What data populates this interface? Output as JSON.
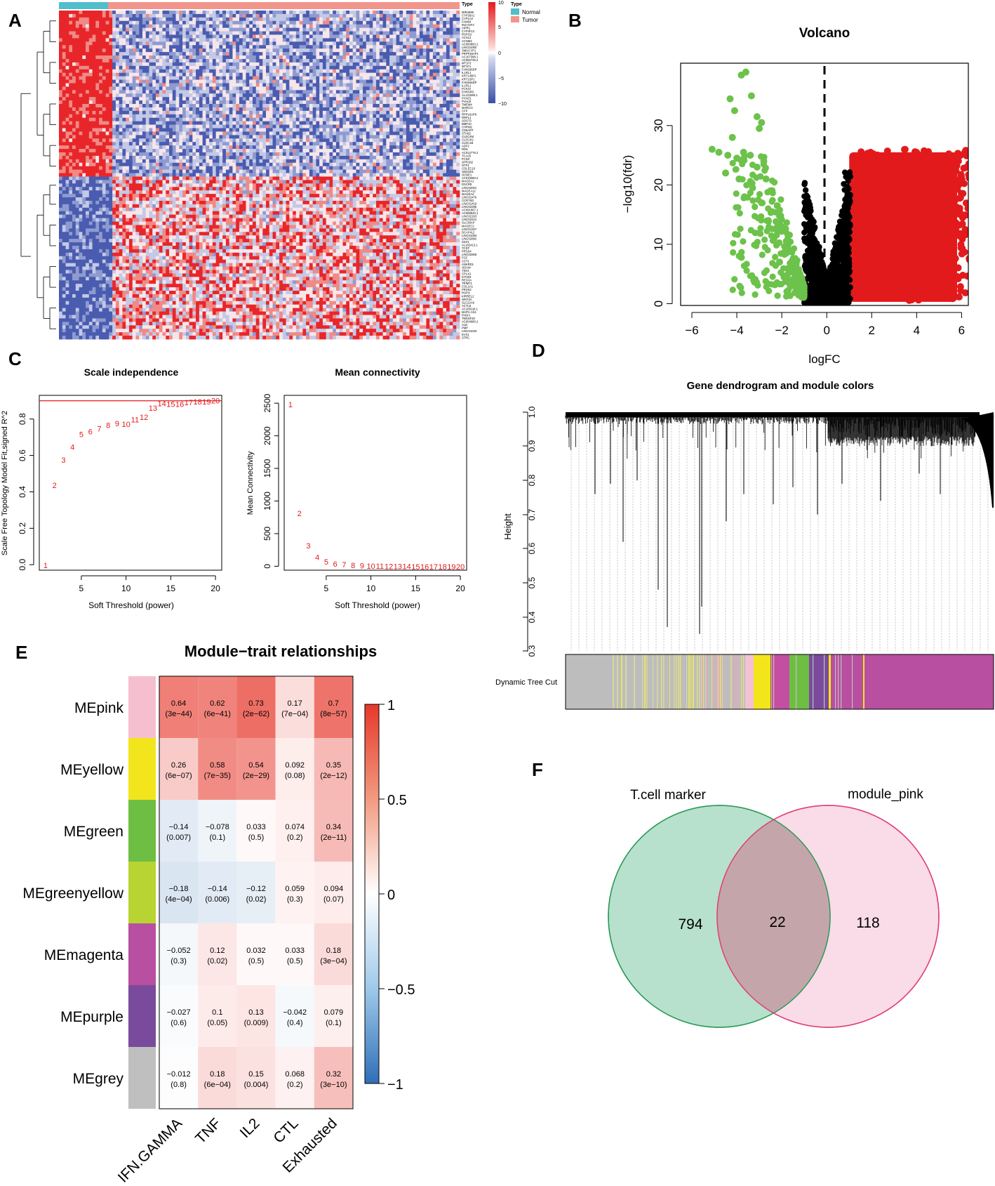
{
  "panels": {
    "a": {
      "letter": "A",
      "legend": {
        "title": "Type",
        "entries": [
          "Normal",
          "Tumor"
        ],
        "colors": [
          "#4fbfcc",
          "#f2958c"
        ]
      },
      "scale": {
        "ticks": [
          "10",
          "5",
          "0",
          "−5",
          "−10"
        ],
        "colors": [
          "#e41a1c",
          "#ffffff",
          "#3a4fa8"
        ]
      }
    },
    "b": {
      "letter": "B"
    },
    "c": {
      "letter": "C"
    },
    "d": {
      "letter": "D",
      "title": "Gene dendrogram and module colors",
      "ylabel": "Height",
      "yticks": [
        "1.0",
        "0.9",
        "0.8",
        "0.7",
        "0.6",
        "0.5",
        "0.4",
        "0.3"
      ],
      "color_bar_label": "Dynamic Tree Cut"
    },
    "e": {
      "letter": "E"
    },
    "f": {
      "letter": "F"
    }
  },
  "chart_data": [
    {
      "id": "heatmap",
      "type": "heatmap",
      "groups": {
        "Normal": 0.13,
        "Tumor": 0.87
      },
      "gene_labels": [
        "MIR4696",
        "CYP26A1",
        "CYP1A2",
        "FAM54",
        "INS-IGF2",
        "VIPR1",
        "CYP4F12",
        "RSPO2",
        "ACS12",
        "ACNM2",
        "AC060850.2",
        "LINC01060",
        "SMUCYP1",
        "PRPF38AP1",
        "AC107398.1",
        "AC092725.2",
        "MT1F3",
        "MT1F1",
        "FAM166DP",
        "IL1RL1",
        "KRT145P2",
        "KRT1SP1",
        "FAM166DP",
        "IL1RL1",
        "FCF23",
        "EHRSPD",
        "AL121690.1",
        "FHAD1",
        "PVALB",
        "TMEM4",
        "MARCO",
        "CFP",
        "RPPL6AP9",
        "RRPL1",
        "SOST3",
        "BMP10",
        "CHRM2",
        "CD8ART",
        "STAB2",
        "CLEC4M",
        "CLEC4G",
        "CLEC1B",
        "ADF2",
        "RDIL",
        "AC012776.2",
        "TCA25",
        "FCN3",
        "GPR182",
        "NTF3",
        "COLEC10",
        "GBSSD1",
        "OCBE1",
        "AC019360.2",
        "MAGEA1",
        "DSCR8",
        "LINC02001",
        "MAGEA12",
        "MAGEA4",
        "LINC02476",
        "CCR7SD",
        "LINC01419",
        "LINC02295",
        "AC091667.1",
        "AC068620.1",
        "LINC02163",
        "LINC02241",
        "SLC38AP",
        "MAGEC2",
        "LINC01207",
        "DCAF4L2",
        "LINC01093",
        "LINC02882",
        "SSX1",
        "AL162413.1",
        "TCDT",
        "PRSS4",
        "LINC02806",
        "FGF",
        "CST1",
        "ANKRD1",
        "ODAM",
        "TSK4",
        "CPLX2",
        "KIT204",
        "REG3A",
        "TRIM71",
        "COL2A1",
        "PRSS2",
        "RSP.8",
        "KIRREL2",
        "WNT3A",
        "SLC22A6",
        "ACTL8",
        "AC105118.1",
        "MAPA-AS1",
        "PADI3",
        "TMSSF20",
        "AC004080.2",
        "ALB",
        "PMP",
        "LINC01033",
        "EVX1",
        "STRC"
      ],
      "color_scale": {
        "min": -10,
        "max": 10,
        "ticks": [
          10,
          5,
          0,
          -5,
          -10
        ]
      }
    },
    {
      "id": "volcano",
      "type": "scatter",
      "title": "Volcano",
      "xlabel": "logFC",
      "ylabel": "−log10(fdr)",
      "xlim": [
        -6.5,
        6.3
      ],
      "ylim": [
        -0.3,
        40.5
      ],
      "xticks": [
        -6,
        -4,
        -2,
        0,
        2,
        4,
        6
      ],
      "yticks": [
        0,
        10,
        20,
        30
      ],
      "threshold": {
        "x": 0
      },
      "series": [
        {
          "name": "down",
          "color": "#6cc24a"
        },
        {
          "name": "not significant",
          "color": "#000000"
        },
        {
          "name": "up",
          "color": "#e31a1c"
        }
      ],
      "green_outliers": [
        [
          -3.8,
          38.5
        ],
        [
          -3.6,
          39
        ],
        [
          -4.3,
          34.5
        ],
        [
          -3.35,
          35
        ],
        [
          -4.1,
          32.5
        ],
        [
          -3.1,
          31.5
        ],
        [
          -2.9,
          30.5
        ],
        [
          -3.0,
          29.5
        ],
        [
          -4.2,
          28
        ],
        [
          -5.1,
          26
        ],
        [
          -4.8,
          25.5
        ],
        [
          -4.4,
          25
        ],
        [
          -4.0,
          24.5
        ],
        [
          -3.7,
          25.5
        ],
        [
          -3.4,
          25
        ],
        [
          -2.8,
          24
        ],
        [
          -3.1,
          23
        ],
        [
          -4.5,
          22
        ],
        [
          -3.9,
          21
        ],
        [
          -2.7,
          21
        ],
        [
          -3.3,
          19.5
        ],
        [
          -2.5,
          19
        ],
        [
          -2.9,
          17
        ],
        [
          -2.2,
          16.5
        ],
        [
          -2.6,
          14
        ],
        [
          -2.0,
          13
        ],
        [
          -2.35,
          11
        ],
        [
          -1.8,
          10.5
        ],
        [
          -3.8,
          7.8
        ],
        [
          -2.1,
          7
        ],
        [
          -1.65,
          6
        ],
        [
          -1.9,
          4.5
        ],
        [
          -1.55,
          3
        ]
      ]
    },
    {
      "id": "scale_independence",
      "type": "scatter",
      "title": "Scale independence",
      "xlabel": "Soft Threshold (power)",
      "ylabel": "Scale Free Topology Model Fit,signed R^2",
      "xlim": [
        0.3,
        20.7
      ],
      "ylim": [
        -0.03,
        0.93
      ],
      "xticks": [
        5,
        10,
        15,
        20
      ],
      "yticks": [
        0.0,
        0.2,
        0.4,
        0.6,
        0.8
      ],
      "threshold_line": 0.9,
      "x": [
        1,
        2,
        3,
        4,
        5,
        6,
        7,
        8,
        9,
        10,
        11,
        12,
        13,
        14,
        15,
        16,
        17,
        18,
        19,
        20
      ],
      "y": [
        0.0,
        0.44,
        0.58,
        0.65,
        0.72,
        0.735,
        0.75,
        0.77,
        0.78,
        0.775,
        0.8,
        0.815,
        0.865,
        0.89,
        0.885,
        0.885,
        0.895,
        0.9,
        0.9,
        0.905
      ]
    },
    {
      "id": "mean_connectivity",
      "type": "scatter",
      "title": "Mean connectivity",
      "xlabel": "Soft Threshold (power)",
      "ylabel": "Mean Connectivity",
      "xlim": [
        0.3,
        20.7
      ],
      "ylim": [
        -60,
        2620
      ],
      "xticks": [
        5,
        10,
        15,
        20
      ],
      "yticks": [
        0,
        500,
        1000,
        1500,
        2000,
        2500
      ],
      "x": [
        1,
        2,
        3,
        4,
        5,
        6,
        7,
        8,
        9,
        10,
        11,
        12,
        13,
        14,
        15,
        16,
        17,
        18,
        19,
        20
      ],
      "y": [
        2490,
        820,
        330,
        150,
        80,
        45,
        35,
        25,
        20,
        16,
        13,
        11,
        9,
        8,
        7,
        6,
        5,
        5,
        4,
        4
      ]
    },
    {
      "id": "module_trait",
      "type": "heatmap",
      "title": "Module−trait relationships",
      "rows": [
        "MEpink",
        "MEyellow",
        "MEgreen",
        "MEgreenyellow",
        "MEmagenta",
        "MEpurple",
        "MEgrey"
      ],
      "row_colors": [
        "#f6bfd0",
        "#f3e51c",
        "#6fbe44",
        "#b8d433",
        "#b84fa0",
        "#7a4b9c",
        "#bfbfbf"
      ],
      "columns": [
        "IFN.GAMMA",
        "TNF",
        "IL2",
        "CTL",
        "Exhausted"
      ],
      "values": [
        [
          0.64,
          0.62,
          0.73,
          0.17,
          0.7
        ],
        [
          0.26,
          0.58,
          0.54,
          0.092,
          0.35
        ],
        [
          -0.14,
          -0.078,
          0.033,
          0.074,
          0.34
        ],
        [
          -0.18,
          -0.14,
          -0.12,
          0.059,
          0.094
        ],
        [
          -0.052,
          0.12,
          0.032,
          0.033,
          0.18
        ],
        [
          -0.027,
          0.1,
          0.13,
          -0.042,
          0.079
        ],
        [
          -0.012,
          0.18,
          0.15,
          0.068,
          0.32
        ]
      ],
      "value_labels": [
        [
          "0.64",
          "0.62",
          "0.73",
          "0.17",
          "0.7"
        ],
        [
          "0.26",
          "0.58",
          "0.54",
          "0.092",
          "0.35"
        ],
        [
          "−0.14",
          "−0.078",
          "0.033",
          "0.074",
          "0.34"
        ],
        [
          "−0.18",
          "−0.14",
          "−0.12",
          "0.059",
          "0.094"
        ],
        [
          "−0.052",
          "0.12",
          "0.032",
          "0.033",
          "0.18"
        ],
        [
          "−0.027",
          "0.1",
          "0.13",
          "−0.042",
          "0.079"
        ],
        [
          "−0.012",
          "0.18",
          "0.15",
          "0.068",
          "0.32"
        ]
      ],
      "pvalues": [
        [
          "(3e−44)",
          "(6e−41)",
          "(2e−62)",
          "(7e−04)",
          "(8e−57)"
        ],
        [
          "(6e−07)",
          "(7e−35)",
          "(2e−29)",
          "(0.08)",
          "(2e−12)"
        ],
        [
          "(0.007)",
          "(0.1)",
          "(0.5)",
          "(0.2)",
          "(2e−11)"
        ],
        [
          "(4e−04)",
          "(0.006)",
          "(0.02)",
          "(0.3)",
          "(0.07)"
        ],
        [
          "(0.3)",
          "(0.02)",
          "(0.5)",
          "(0.5)",
          "(3e−04)"
        ],
        [
          "(0.6)",
          "(0.05)",
          "(0.009)",
          "(0.4)",
          "(0.1)"
        ],
        [
          "(0.8)",
          "(6e−04)",
          "(0.004)",
          "(0.2)",
          "(3e−10)"
        ]
      ],
      "scale_ticks": [
        "1",
        "0.5",
        "0",
        "−0.5",
        "−1"
      ]
    },
    {
      "id": "venn",
      "type": "venn",
      "sets": [
        {
          "name": "T.cell marker",
          "only": 794,
          "color": "#b3dfca",
          "stroke": "#2f9a5a"
        },
        {
          "name": "module_pink",
          "only": 118,
          "color": "#f4c0d6",
          "stroke": "#e0407a"
        }
      ],
      "intersection": 22
    }
  ]
}
